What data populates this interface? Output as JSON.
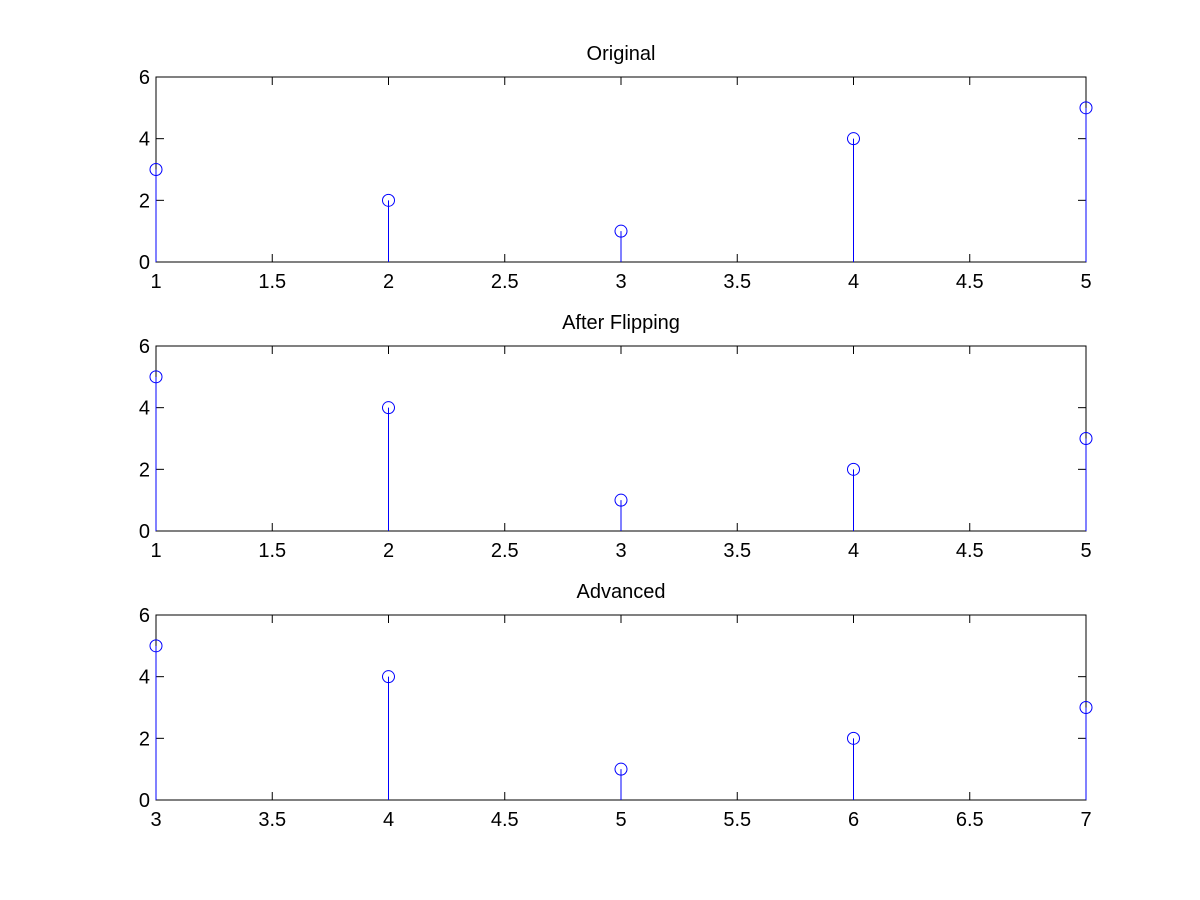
{
  "figure": {
    "background": "#ffffff",
    "axes_color": "#000000",
    "series_color": "#0000ff"
  },
  "chart_data": [
    {
      "type": "stem",
      "title": "Original",
      "x": [
        1,
        2,
        3,
        4,
        5
      ],
      "y": [
        3,
        2,
        1,
        4,
        5
      ],
      "xlim": [
        1,
        5
      ],
      "ylim": [
        0,
        6
      ],
      "xticks": [
        "1",
        "1.5",
        "2",
        "2.5",
        "3",
        "3.5",
        "4",
        "4.5",
        "5"
      ],
      "yticks": [
        "0",
        "2",
        "4",
        "6"
      ],
      "marker": "open-circle",
      "grid": false
    },
    {
      "type": "stem",
      "title": "After Flipping",
      "x": [
        1,
        2,
        3,
        4,
        5
      ],
      "y": [
        5,
        4,
        1,
        2,
        3
      ],
      "xlim": [
        1,
        5
      ],
      "ylim": [
        0,
        6
      ],
      "xticks": [
        "1",
        "1.5",
        "2",
        "2.5",
        "3",
        "3.5",
        "4",
        "4.5",
        "5"
      ],
      "yticks": [
        "0",
        "2",
        "4",
        "6"
      ],
      "marker": "open-circle",
      "grid": false
    },
    {
      "type": "stem",
      "title": "Advanced",
      "x": [
        3,
        4,
        5,
        6,
        7
      ],
      "y": [
        5,
        4,
        1,
        2,
        3
      ],
      "xlim": [
        3,
        7
      ],
      "ylim": [
        0,
        6
      ],
      "xticks": [
        "3",
        "3.5",
        "4",
        "4.5",
        "5",
        "5.5",
        "6",
        "6.5",
        "7"
      ],
      "yticks": [
        "0",
        "2",
        "4",
        "6"
      ],
      "marker": "open-circle",
      "grid": false
    }
  ]
}
